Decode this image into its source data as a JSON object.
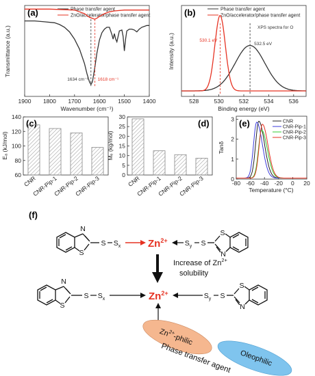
{
  "panel_labels": {
    "a": "(a)",
    "b": "(b)",
    "c": "(c)",
    "d": "(d)",
    "e": "(e)",
    "f": "(f)"
  },
  "chart_data": [
    {
      "panel": "a",
      "type": "line",
      "xlabel": "Wavenumber (cm⁻¹)",
      "ylabel": "Transmittance (a.u.)",
      "xlim": [
        1900,
        1400
      ],
      "x_reversed": true,
      "x_ticks": [
        1900,
        1800,
        1700,
        1600,
        1500,
        1400
      ],
      "legend_position": "top",
      "series": [
        {
          "name": "Phase transfer agent",
          "color": "#333333",
          "x": [
            1900,
            1860,
            1820,
            1780,
            1760,
            1740,
            1720,
            1700,
            1680,
            1660,
            1650,
            1640,
            1634,
            1628,
            1620,
            1610,
            1600,
            1590,
            1580,
            1570,
            1560,
            1550,
            1545,
            1540,
            1535,
            1530,
            1520,
            1510,
            1505,
            1500,
            1495,
            1490,
            1480,
            1470,
            1460,
            1450,
            1440,
            1430,
            1420,
            1410,
            1400
          ],
          "y": [
            0.83,
            0.83,
            0.82,
            0.81,
            0.79,
            0.76,
            0.71,
            0.63,
            0.52,
            0.36,
            0.25,
            0.16,
            0.13,
            0.16,
            0.29,
            0.48,
            0.62,
            0.7,
            0.74,
            0.76,
            0.76,
            0.68,
            0.63,
            0.69,
            0.63,
            0.6,
            0.72,
            0.73,
            0.66,
            0.5,
            0.63,
            0.72,
            0.74,
            0.74,
            0.73,
            0.71,
            0.74,
            0.76,
            0.77,
            0.78,
            0.78
          ]
        },
        {
          "name": "ZnO/accelerator/phase transfer agent",
          "color": "#e63222",
          "x": [
            1900,
            1800,
            1700,
            1680,
            1660,
            1650,
            1640,
            1630,
            1620,
            1618,
            1610,
            1600,
            1580,
            1560,
            1540,
            1500,
            1450,
            1400
          ],
          "y": [
            0.96,
            0.96,
            0.95,
            0.93,
            0.91,
            0.89,
            0.87,
            0.86,
            0.85,
            0.85,
            0.86,
            0.88,
            0.91,
            0.93,
            0.94,
            0.95,
            0.95,
            0.95
          ]
        }
      ],
      "annotations": [
        {
          "text": "1634 cm⁻¹",
          "x": 1634,
          "color": "#333333"
        },
        {
          "text": "1618 cm⁻¹",
          "x": 1618,
          "color": "#e63222"
        }
      ]
    },
    {
      "panel": "b",
      "type": "line",
      "xlabel": "Binding energy (eV)",
      "ylabel": "Intensity (a.u.)",
      "xlim": [
        527,
        537
      ],
      "x_ticks": [
        528,
        530,
        532,
        534,
        536
      ],
      "legend_position": "top",
      "series": [
        {
          "name": "Phase transfer agent",
          "color": "#333333",
          "type": "gaussian",
          "center": 532.5,
          "sigma": 1.2,
          "height": 0.5,
          "baseline": 0.06
        },
        {
          "name": "ZnO/accelerator/phase transfer agent",
          "color": "#e63222",
          "type": "gaussian",
          "center": 530.1,
          "sigma": 0.42,
          "height": 0.83,
          "baseline": 0.06
        }
      ],
      "annotations": [
        {
          "text": "530.1 eV",
          "x": 530.1,
          "color": "#e63222"
        },
        {
          "text": "532.5 eV",
          "x": 532.5,
          "color": "#333333"
        },
        {
          "text": "XPS spectra for O",
          "color": "#333333"
        }
      ]
    },
    {
      "panel": "c",
      "type": "bar",
      "ylabel": "Eₐ (kJ/mol)",
      "ylim": [
        60,
        140
      ],
      "y_ticks": [
        60,
        80,
        100,
        120,
        140
      ],
      "categories": [
        "CNR",
        "CNR-Pip-1",
        "CNR-Pip-2",
        "CNR-Pip-3"
      ],
      "values": [
        129,
        124,
        118,
        98
      ]
    },
    {
      "panel": "d",
      "type": "bar",
      "ylabel": "Mₑ (kg/mol)",
      "ylim": [
        0,
        30
      ],
      "y_ticks": [
        0,
        5,
        10,
        15,
        20,
        25,
        30
      ],
      "categories": [
        "CNR",
        "CNR-Pip-1",
        "CNR-Pip-2",
        "CNR-Pip-3"
      ],
      "values": [
        29,
        12.5,
        10.5,
        8.7
      ]
    },
    {
      "panel": "e",
      "type": "line",
      "xlabel": "Temperature (°C)",
      "ylabel": "Tanδ",
      "xlim": [
        -80,
        20
      ],
      "ylim": [
        0,
        3
      ],
      "x_ticks": [
        -80,
        -60,
        -40,
        -20,
        0,
        20
      ],
      "y_ticks": [
        0,
        1,
        2,
        3
      ],
      "legend_position": "top-right",
      "series": [
        {
          "name": "CNR",
          "color": "#222222",
          "peak_x": -48,
          "peak_y": 2.85
        },
        {
          "name": "CNR-Pip-1",
          "color": "#3b3bdc",
          "peak_x": -51,
          "peak_y": 2.8
        },
        {
          "name": "CNR-Pip-2",
          "color": "#33cc33",
          "peak_x": -44,
          "peak_y": 2.4
        },
        {
          "name": "CNR-Pip-3",
          "color": "#e63222",
          "peak_x": -43,
          "peak_y": 2.7
        }
      ]
    }
  ],
  "scheme": {
    "zn": "Zn",
    "zn_charge": "2+",
    "s": "S",
    "n": "N",
    "sx": "S",
    "sx_sub": "x",
    "sy": "S",
    "sy_sub": "y",
    "increase_line1": "Increase of Zn",
    "increase_sup": "2+",
    "increase_line2": "solubility",
    "philic_prefix": "Zn",
    "philic_sup": "2+",
    "philic_suffix": "-philic",
    "oleophilic": "Oleophilic",
    "phase_transfer_label": "Phase transfer agent"
  }
}
